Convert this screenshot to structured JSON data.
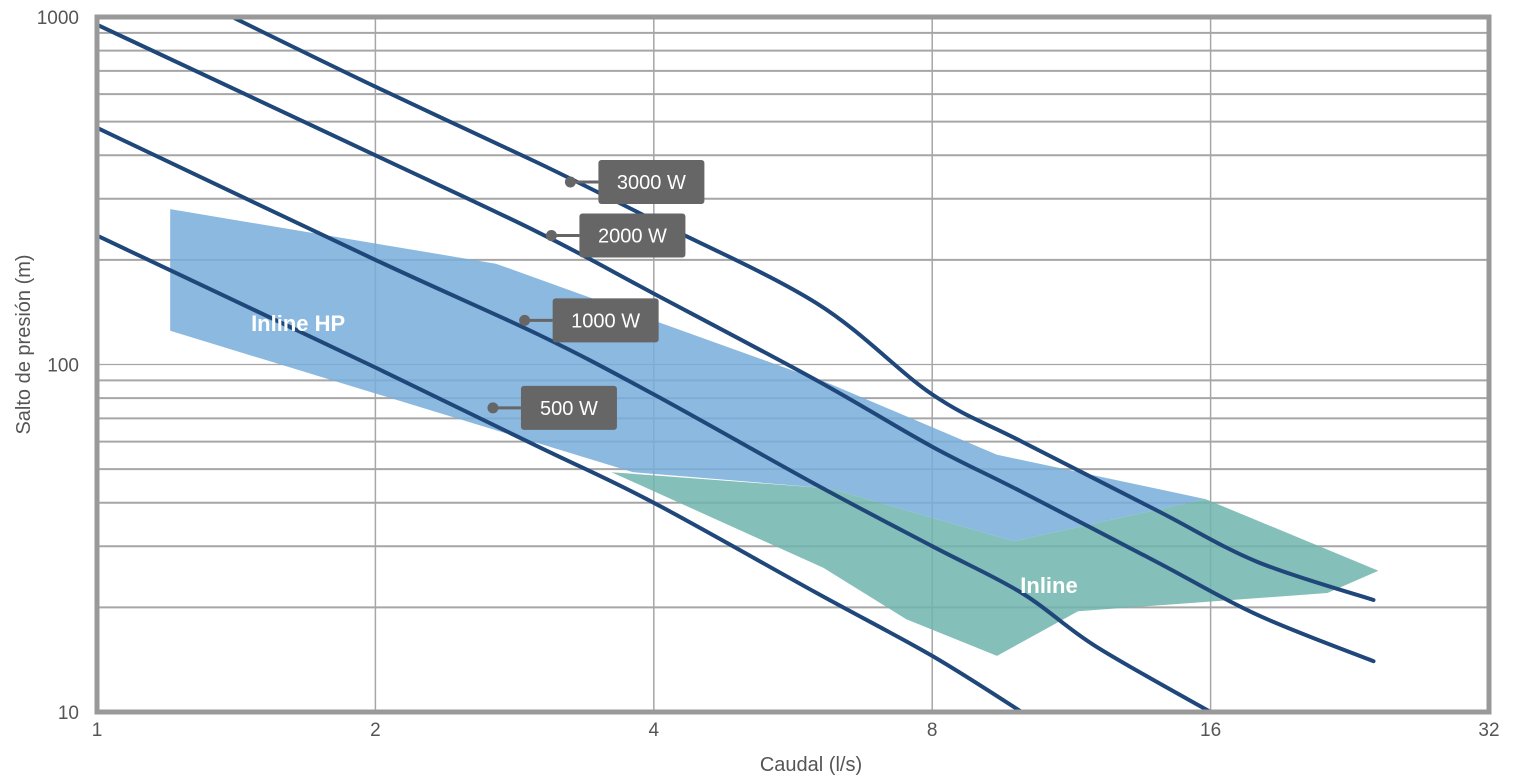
{
  "chart_data": {
    "type": "line",
    "x_scale": "log2",
    "y_scale": "log10",
    "xlim": [
      1,
      32
    ],
    "ylim": [
      10,
      1000
    ],
    "xlabel": "Caudal (l/s)",
    "ylabel": "Salto de presión (m)",
    "x_ticks": [
      1,
      2,
      4,
      8,
      16,
      32
    ],
    "x_tick_labels": [
      "1",
      "2",
      "4",
      "8",
      "16",
      "32"
    ],
    "y_ticks": [
      10,
      100,
      1000
    ],
    "y_tick_labels": [
      "10",
      "100",
      "1000"
    ],
    "grid": true,
    "series": [
      {
        "name": "3000 W",
        "color": "#1f477a",
        "points": [
          [
            1.4,
            1000
          ],
          [
            2.0,
            630
          ],
          [
            3.0,
            380
          ],
          [
            4.0,
            260
          ],
          [
            6.0,
            150
          ],
          [
            8.0,
            82
          ],
          [
            10.0,
            60
          ],
          [
            14.0,
            38
          ],
          [
            18.0,
            27
          ],
          [
            24.0,
            21
          ]
        ]
      },
      {
        "name": "2000 W",
        "color": "#1f477a",
        "points": [
          [
            1.0,
            950
          ],
          [
            2.0,
            400
          ],
          [
            3.0,
            240
          ],
          [
            4.0,
            160
          ],
          [
            6.0,
            90
          ],
          [
            8.0,
            58
          ],
          [
            10.0,
            43
          ],
          [
            14.0,
            27
          ],
          [
            18.0,
            19
          ],
          [
            24.0,
            14
          ]
        ]
      },
      {
        "name": "1000 W",
        "color": "#1f477a",
        "points": [
          [
            1.0,
            480
          ],
          [
            2.0,
            200
          ],
          [
            3.0,
            122
          ],
          [
            4.0,
            82
          ],
          [
            6.0,
            45
          ],
          [
            8.0,
            30
          ],
          [
            10.0,
            22
          ],
          [
            12.0,
            15.5
          ],
          [
            16.0,
            10
          ]
        ]
      },
      {
        "name": "500 W",
        "color": "#1f477a",
        "points": [
          [
            1.0,
            235
          ],
          [
            2.0,
            98
          ],
          [
            3.0,
            58
          ],
          [
            4.0,
            40
          ],
          [
            6.0,
            22
          ],
          [
            8.0,
            14.5
          ],
          [
            10.0,
            10
          ]
        ]
      }
    ],
    "regions": [
      {
        "name": "Inline HP",
        "color": "#78addb",
        "polygon": [
          [
            1.2,
            280
          ],
          [
            2.7,
            195
          ],
          [
            6.2,
            88
          ],
          [
            9.4,
            55
          ],
          [
            15.8,
            41
          ],
          [
            9.8,
            31
          ],
          [
            6.2,
            44
          ],
          [
            3.8,
            49
          ],
          [
            1.2,
            125
          ]
        ]
      },
      {
        "name": "Inline",
        "color": "#6fb5ad",
        "polygon": [
          [
            3.6,
            49
          ],
          [
            6.2,
            44
          ],
          [
            9.8,
            31
          ],
          [
            15.8,
            41
          ],
          [
            24.3,
            25.5
          ],
          [
            21.4,
            22
          ],
          [
            11.5,
            19.5
          ],
          [
            9.4,
            14.5
          ],
          [
            7.5,
            18.5
          ],
          [
            6.1,
            26
          ],
          [
            3.6,
            49
          ]
        ]
      }
    ],
    "region_labels": [
      "Inline HP",
      "Inline"
    ],
    "callouts": [
      {
        "series": "3000 W",
        "text": "3000 W",
        "x": 3.25,
        "y": 335
      },
      {
        "series": "2000 W",
        "text": "2000 W",
        "x": 3.1,
        "y": 235
      },
      {
        "series": "1000 W",
        "text": "1000 W",
        "x": 2.9,
        "y": 134
      },
      {
        "series": "500 W",
        "text": "500 W",
        "x": 2.68,
        "y": 75
      }
    ],
    "colors": {
      "background": "#ffffff",
      "frame": "#999999",
      "grid": "#a6a6a6",
      "callout_box": "#666666",
      "callout_text": "#ffffff",
      "tick_text": "#555555"
    }
  }
}
